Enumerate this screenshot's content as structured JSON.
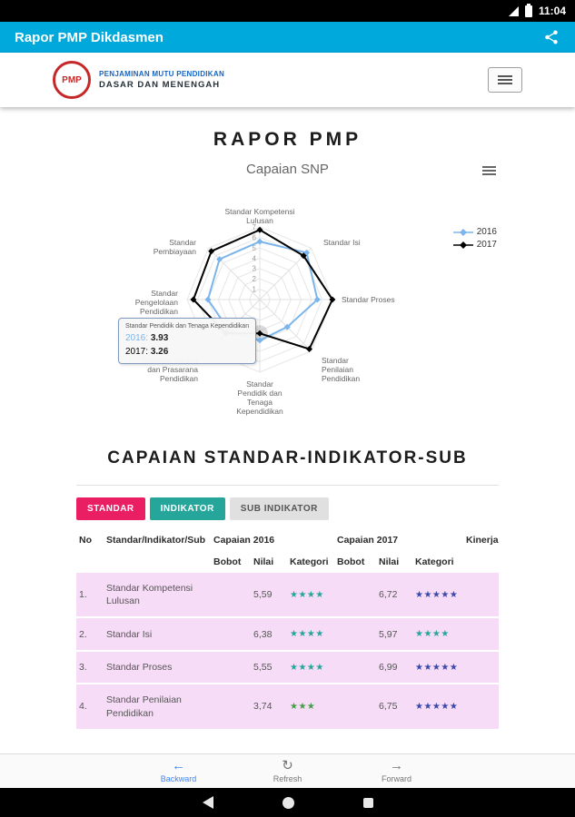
{
  "status_bar": {
    "time": "11:04"
  },
  "app_bar": {
    "title": "Rapor PMP Dikdasmen"
  },
  "toolbar": {
    "logo_text": "PMP",
    "org_line1": "PENJAMINAN MUTU PENDIDIKAN",
    "org_line2": "DASAR DAN MENENGAH"
  },
  "page": {
    "title": "RAPOR PMP"
  },
  "chart": {
    "title": "Capaian SNP",
    "tooltip": {
      "header": "Standar Pendidik dan Tenaga Kependidikan",
      "rows": [
        {
          "label": "2016",
          "value": "3.93",
          "color": "#7cb5ec"
        },
        {
          "label": "2017",
          "value": "3.26",
          "color": "#000000"
        }
      ]
    }
  },
  "chart_data": {
    "type": "radar",
    "title": "Capaian SNP",
    "categories": [
      "Standar Kompetensi Lulusan",
      "Standar Isi",
      "Standar Proses",
      "Standar Penilaian Pendidikan",
      "Standar Pendidik dan Tenaga Kependidikan",
      "Standar Sarana dan Prasarana Pendidikan",
      "Standar Pengelolaan Pendidikan",
      "Standar Pembiayaan"
    ],
    "category_label_lines": [
      [
        "Standar Kompetensi",
        "Lulusan"
      ],
      [
        "Standar Isi"
      ],
      [
        "Standar Proses"
      ],
      [
        "Standar",
        "Penilaian",
        "Pendidikan"
      ],
      [
        "Standar",
        "Pendidik dan",
        "Tenaga",
        "Kependidikan"
      ],
      [
        "Standar Sarana",
        "dan Prasarana",
        "Pendidikan"
      ],
      [
        "Standar",
        "Pengelolaan",
        "Pendidikan"
      ],
      [
        "Standar",
        "Pembiayaan"
      ]
    ],
    "series": [
      {
        "name": "2016",
        "color": "#7cb5ec",
        "values": [
          5.59,
          6.38,
          5.55,
          3.74,
          3.93,
          4.2,
          5.0,
          5.5
        ]
      },
      {
        "name": "2017",
        "color": "#000000",
        "values": [
          6.72,
          5.97,
          6.99,
          6.75,
          3.26,
          4.6,
          6.4,
          6.6
        ]
      }
    ],
    "axis": {
      "min": 0,
      "max": 7,
      "ticks": [
        1,
        2,
        3,
        4,
        5,
        6,
        7
      ]
    },
    "legend_position": "right",
    "grid": true,
    "highlight": {
      "series": "2017",
      "category_index": 4
    }
  },
  "section": {
    "title": "CAPAIAN STANDAR-INDIKATOR-SUB"
  },
  "tabs": [
    {
      "label": "STANDAR",
      "bg": "#e91e63",
      "fg": "#ffffff"
    },
    {
      "label": "INDIKATOR",
      "bg": "#26a69a",
      "fg": "#ffffff"
    },
    {
      "label": "SUB INDIKATOR",
      "bg": "#e0e0e0",
      "fg": "#555555"
    }
  ],
  "table": {
    "row_bg": "#f7dcf7",
    "header": {
      "no": "No",
      "name": "Standar/Indikator/Sub",
      "capaian_2016": "Capaian 2016",
      "capaian_2017": "Capaian 2017",
      "kinerja": "Kinerja",
      "bobot": "Bobot",
      "nilai": "Nilai",
      "kategori": "Kategori"
    },
    "rows": [
      {
        "no": "1.",
        "name": "Standar Kompetensi Lulusan",
        "bobot_2016": "",
        "nilai_2016": "5,59",
        "stars_2016": 4,
        "stars_2016_color": "#26a69a",
        "bobot_2017": "",
        "nilai_2017": "6,72",
        "stars_2017": 5,
        "stars_2017_color": "#3949ab",
        "kinerja": ""
      },
      {
        "no": "2.",
        "name": "Standar Isi",
        "bobot_2016": "",
        "nilai_2016": "6,38",
        "stars_2016": 4,
        "stars_2016_color": "#26a69a",
        "bobot_2017": "",
        "nilai_2017": "5,97",
        "stars_2017": 4,
        "stars_2017_color": "#26a69a",
        "kinerja": ""
      },
      {
        "no": "3.",
        "name": "Standar Proses",
        "bobot_2016": "",
        "nilai_2016": "5,55",
        "stars_2016": 4,
        "stars_2016_color": "#26a69a",
        "bobot_2017": "",
        "nilai_2017": "6,99",
        "stars_2017": 5,
        "stars_2017_color": "#3949ab",
        "kinerja": ""
      },
      {
        "no": "4.",
        "name": "Standar Penilaian Pendidikan",
        "bobot_2016": "",
        "nilai_2016": "3,74",
        "stars_2016": 3,
        "stars_2016_color": "#43a047",
        "bobot_2017": "",
        "nilai_2017": "6,75",
        "stars_2017": 5,
        "stars_2017_color": "#3949ab",
        "kinerja": ""
      }
    ]
  },
  "bottom_nav": [
    {
      "label": "Backward",
      "icon": "←",
      "icon_name": "arrow-left-icon",
      "color": "#4285f4"
    },
    {
      "label": "Refresh",
      "icon": "↻",
      "icon_name": "refresh-icon",
      "color": "#757575"
    },
    {
      "label": "Forward",
      "icon": "→",
      "icon_name": "arrow-right-icon",
      "color": "#757575"
    }
  ]
}
